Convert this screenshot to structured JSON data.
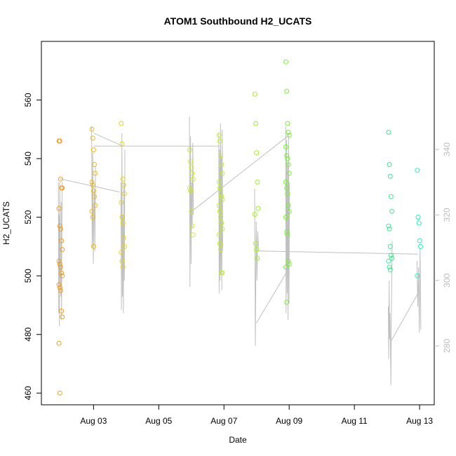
{
  "chart_data": {
    "type": "scatter",
    "title": "ATOM1 Southbound H2_UCATS",
    "xlabel": "Date",
    "ylabel": "H2_UCATS",
    "x_ticks": [
      "Aug 03",
      "Aug 05",
      "Aug 07",
      "Aug 09",
      "Aug 11",
      "Aug 13"
    ],
    "x_tick_days": [
      3,
      5,
      7,
      9,
      11,
      13
    ],
    "xlim": [
      1.4,
      13.45
    ],
    "ylim": [
      456,
      580
    ],
    "y_ticks": [
      460,
      480,
      500,
      520,
      540,
      560
    ],
    "y2_ticks": [
      280,
      300,
      320,
      340
    ],
    "y2lim": [
      262,
      373
    ],
    "colors": {
      "axis": "#000000",
      "secondary_axis": "#bdbdbd",
      "secondary_line": "#c0c0c0",
      "gradient": [
        "#f39a1f",
        "#e0e52a",
        "#b8f02a",
        "#3ff03a",
        "#26f0b8"
      ]
    },
    "scatter_groups": [
      {
        "day": 1.99,
        "values": [
          546,
          546,
          533,
          530,
          530,
          523,
          517,
          516,
          512,
          509,
          505,
          504,
          503,
          501,
          500,
          497,
          496,
          495,
          488,
          486,
          477,
          460
        ]
      },
      {
        "day": 3.0,
        "values": [
          550,
          547,
          543,
          538,
          535,
          532,
          531,
          529,
          527,
          524,
          522,
          520,
          510
        ]
      },
      {
        "day": 3.9,
        "values": [
          552,
          545,
          533,
          531,
          528,
          525,
          520,
          518,
          513,
          510,
          508,
          505,
          503
        ]
      },
      {
        "day": 6.0,
        "values": [
          543,
          539,
          537,
          535,
          533,
          530,
          529,
          522,
          517,
          514
        ]
      },
      {
        "day": 6.9,
        "values": [
          548,
          546,
          541,
          538,
          535,
          532,
          530,
          528,
          527,
          526,
          524,
          522,
          520,
          518,
          516,
          514,
          511,
          509,
          501,
          501
        ]
      },
      {
        "day": 8.0,
        "values": [
          562,
          552,
          542,
          532,
          523,
          521,
          511,
          509,
          506
        ]
      },
      {
        "day": 8.95,
        "values": [
          573,
          563,
          552,
          549,
          548,
          544,
          541,
          540,
          538,
          535,
          532,
          530,
          528,
          524,
          522,
          520,
          515,
          514,
          505,
          504,
          503,
          491
        ]
      },
      {
        "day": 12.1,
        "values": [
          549,
          538,
          534,
          527,
          522,
          517,
          516,
          510,
          507,
          506,
          505,
          503,
          502
        ]
      },
      {
        "day": 12.98,
        "values": [
          536,
          520,
          518,
          512,
          510,
          500
        ]
      }
    ],
    "secondary_series": [
      {
        "day": 1.98,
        "values": [
          330,
          290,
          320,
          286,
          330,
          305,
          300,
          295,
          324,
          288,
          316,
          330
        ]
      },
      {
        "day": 3.0,
        "values": [
          347,
          310,
          339,
          305,
          318,
          328,
          309,
          335
        ]
      },
      {
        "day": 3.9,
        "values": [
          330,
          291,
          345,
          295,
          320,
          290,
          330,
          300,
          340
        ]
      },
      {
        "day": 6.0,
        "values": [
          350,
          298,
          344,
          305,
          330,
          316,
          342,
          320
        ]
      },
      {
        "day": 6.9,
        "values": [
          345,
          296,
          340,
          300,
          348,
          302,
          338,
          297,
          346,
          310
        ]
      },
      {
        "day": 8.0,
        "values": [
          328,
          280,
          318,
          300,
          315,
          310
        ]
      },
      {
        "day": 8.95,
        "values": [
          347,
          290,
          343,
          296,
          336,
          288,
          345,
          293,
          330
        ]
      },
      {
        "day": 12.1,
        "values": [
          292,
          276,
          300,
          282,
          290,
          280,
          268,
          288,
          298,
          312
        ]
      },
      {
        "day": 12.98,
        "values": [
          306,
          292,
          304,
          284,
          310,
          285
        ]
      }
    ],
    "secondary_connectors": [
      {
        "from": [
          1.98,
          331
        ],
        "to": [
          3.8,
          327
        ]
      },
      {
        "from": [
          3.0,
          345
        ],
        "to": [
          3.9,
          341
        ]
      },
      {
        "from": [
          3.0,
          341
        ],
        "to": [
          6.9,
          341
        ]
      },
      {
        "from": [
          6.0,
          321
        ],
        "to": [
          8.95,
          344
        ]
      },
      {
        "from": [
          8.0,
          309
        ],
        "to": [
          12.95,
          308
        ]
      },
      {
        "from": [
          8.0,
          287
        ],
        "to": [
          8.95,
          303
        ]
      },
      {
        "from": [
          12.1,
          281
        ],
        "to": [
          12.95,
          296
        ]
      }
    ]
  }
}
